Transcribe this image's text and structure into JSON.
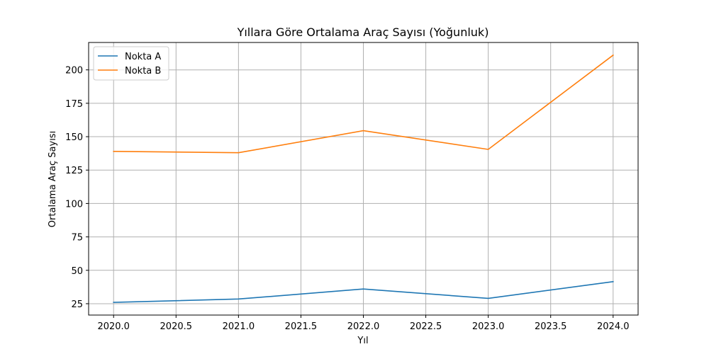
{
  "chart_data": {
    "type": "line",
    "title": "Yıllara Göre Ortalama Araç Sayısı (Yoğunluk)",
    "xlabel": "Yıl",
    "ylabel": "Ortalama Araç Sayısı",
    "x": [
      2020,
      2021,
      2022,
      2023,
      2024
    ],
    "xlim": [
      2019.8,
      2024.2
    ],
    "ylim": [
      16.5,
      220.5
    ],
    "x_ticks": [
      "2020.0",
      "2020.5",
      "2021.0",
      "2021.5",
      "2022.0",
      "2022.5",
      "2023.0",
      "2023.5",
      "2024.0"
    ],
    "y_ticks": [
      "25",
      "50",
      "75",
      "100",
      "125",
      "150",
      "175",
      "200"
    ],
    "grid": true,
    "legend_position": "upper left",
    "series": [
      {
        "name": "Nokta A",
        "color": "#1f77b4",
        "values": [
          26,
          28.5,
          36,
          29,
          41.5
        ]
      },
      {
        "name": "Nokta B",
        "color": "#ff7f0e",
        "values": [
          139,
          138,
          154.5,
          140.5,
          211
        ]
      }
    ]
  }
}
